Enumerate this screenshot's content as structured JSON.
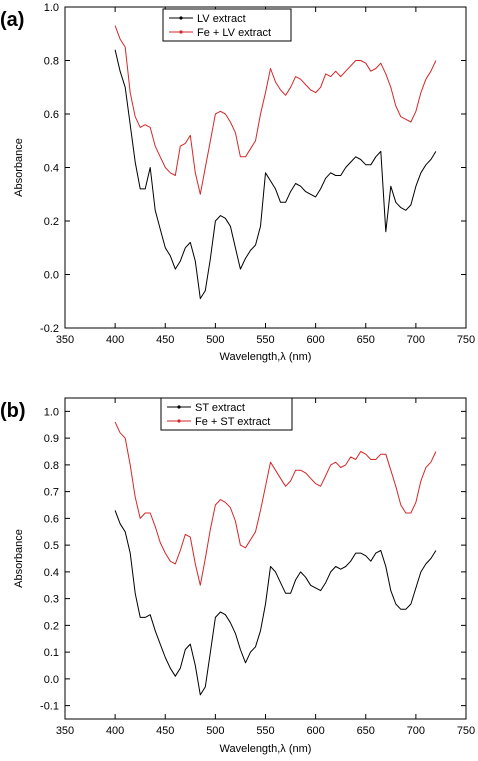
{
  "chart_data": [
    {
      "type": "line",
      "panel_label": "(a)",
      "xlabel": "Wavelength,λ (nm)",
      "ylabel": "Absorbance",
      "xlim": [
        350,
        750
      ],
      "ylim": [
        -0.2,
        1.0
      ],
      "xticks": [
        350,
        400,
        450,
        500,
        550,
        600,
        650,
        700,
        750
      ],
      "yticks": [
        -0.2,
        0.0,
        0.2,
        0.4,
        0.6,
        0.8,
        1.0
      ],
      "ytick_decimals": 1,
      "legend": "top-center",
      "series": [
        {
          "name": "LV extract",
          "color": "#000000",
          "x": [
            400,
            405,
            410,
            415,
            420,
            425,
            430,
            435,
            440,
            445,
            450,
            455,
            460,
            465,
            470,
            475,
            480,
            485,
            490,
            495,
            500,
            505,
            510,
            515,
            520,
            525,
            530,
            535,
            540,
            545,
            550,
            555,
            560,
            565,
            570,
            575,
            580,
            585,
            590,
            595,
            600,
            605,
            610,
            615,
            620,
            625,
            630,
            635,
            640,
            645,
            650,
            655,
            660,
            665,
            670,
            675,
            680,
            685,
            690,
            695,
            700,
            705,
            710,
            715,
            720
          ],
          "y": [
            0.84,
            0.76,
            0.7,
            0.56,
            0.42,
            0.32,
            0.32,
            0.4,
            0.24,
            0.17,
            0.1,
            0.07,
            0.02,
            0.05,
            0.1,
            0.12,
            0.05,
            -0.09,
            -0.06,
            0.06,
            0.2,
            0.22,
            0.21,
            0.18,
            0.1,
            0.02,
            0.06,
            0.09,
            0.11,
            0.18,
            0.38,
            0.35,
            0.32,
            0.27,
            0.27,
            0.31,
            0.34,
            0.33,
            0.31,
            0.3,
            0.29,
            0.32,
            0.36,
            0.38,
            0.37,
            0.37,
            0.4,
            0.42,
            0.44,
            0.43,
            0.41,
            0.41,
            0.44,
            0.46,
            0.16,
            0.33,
            0.27,
            0.25,
            0.24,
            0.26,
            0.33,
            0.38,
            0.41,
            0.43,
            0.46
          ]
        },
        {
          "name": "Fe + LV extract",
          "color": "#d62728",
          "x": [
            400,
            405,
            410,
            415,
            420,
            425,
            430,
            435,
            440,
            445,
            450,
            455,
            460,
            465,
            470,
            475,
            480,
            485,
            490,
            495,
            500,
            505,
            510,
            515,
            520,
            525,
            530,
            535,
            540,
            545,
            550,
            555,
            560,
            565,
            570,
            575,
            580,
            585,
            590,
            595,
            600,
            605,
            610,
            615,
            620,
            625,
            630,
            635,
            640,
            645,
            650,
            655,
            660,
            665,
            670,
            675,
            680,
            685,
            690,
            695,
            700,
            705,
            710,
            715,
            720
          ],
          "y": [
            0.93,
            0.88,
            0.85,
            0.68,
            0.59,
            0.55,
            0.56,
            0.55,
            0.48,
            0.44,
            0.4,
            0.38,
            0.37,
            0.48,
            0.49,
            0.52,
            0.38,
            0.3,
            0.4,
            0.5,
            0.6,
            0.61,
            0.6,
            0.57,
            0.53,
            0.44,
            0.44,
            0.47,
            0.5,
            0.6,
            0.68,
            0.77,
            0.72,
            0.69,
            0.67,
            0.7,
            0.74,
            0.73,
            0.71,
            0.69,
            0.68,
            0.7,
            0.75,
            0.74,
            0.76,
            0.74,
            0.76,
            0.78,
            0.8,
            0.8,
            0.79,
            0.76,
            0.77,
            0.79,
            0.75,
            0.7,
            0.63,
            0.59,
            0.58,
            0.57,
            0.61,
            0.68,
            0.73,
            0.76,
            0.8
          ]
        }
      ]
    },
    {
      "type": "line",
      "panel_label": "(b)",
      "xlabel": "Wavelength,λ (nm)",
      "ylabel": "Absorbance",
      "xlim": [
        350,
        750
      ],
      "ylim": [
        -0.15,
        1.05
      ],
      "xticks": [
        350,
        400,
        450,
        500,
        550,
        600,
        650,
        700,
        750
      ],
      "yticks": [
        -0.1,
        0.0,
        0.1,
        0.2,
        0.3,
        0.4,
        0.5,
        0.6,
        0.7,
        0.8,
        0.9,
        1.0
      ],
      "ytick_decimals": 1,
      "legend": "top-center",
      "series": [
        {
          "name": "ST extract",
          "color": "#000000",
          "x": [
            400,
            405,
            410,
            415,
            420,
            425,
            430,
            435,
            440,
            445,
            450,
            455,
            460,
            465,
            470,
            475,
            480,
            485,
            490,
            495,
            500,
            505,
            510,
            515,
            520,
            525,
            530,
            535,
            540,
            545,
            550,
            555,
            560,
            565,
            570,
            575,
            580,
            585,
            590,
            595,
            600,
            605,
            610,
            615,
            620,
            625,
            630,
            635,
            640,
            645,
            650,
            655,
            660,
            665,
            670,
            675,
            680,
            685,
            690,
            695,
            700,
            705,
            710,
            715,
            720
          ],
          "y": [
            0.63,
            0.58,
            0.55,
            0.47,
            0.32,
            0.23,
            0.23,
            0.24,
            0.18,
            0.13,
            0.08,
            0.04,
            0.01,
            0.04,
            0.11,
            0.13,
            0.05,
            -0.06,
            -0.03,
            0.1,
            0.23,
            0.25,
            0.24,
            0.21,
            0.17,
            0.11,
            0.06,
            0.1,
            0.12,
            0.18,
            0.28,
            0.42,
            0.4,
            0.36,
            0.32,
            0.32,
            0.37,
            0.4,
            0.38,
            0.35,
            0.34,
            0.33,
            0.36,
            0.4,
            0.42,
            0.41,
            0.42,
            0.44,
            0.47,
            0.47,
            0.46,
            0.44,
            0.47,
            0.48,
            0.42,
            0.33,
            0.28,
            0.26,
            0.26,
            0.28,
            0.34,
            0.4,
            0.43,
            0.45,
            0.48
          ]
        },
        {
          "name": "Fe + ST extract",
          "color": "#d62728",
          "x": [
            400,
            405,
            410,
            415,
            420,
            425,
            430,
            435,
            440,
            445,
            450,
            455,
            460,
            465,
            470,
            475,
            480,
            485,
            490,
            495,
            500,
            505,
            510,
            515,
            520,
            525,
            530,
            535,
            540,
            545,
            550,
            555,
            560,
            565,
            570,
            575,
            580,
            585,
            590,
            595,
            600,
            605,
            610,
            615,
            620,
            625,
            630,
            635,
            640,
            645,
            650,
            655,
            660,
            665,
            670,
            675,
            680,
            685,
            690,
            695,
            700,
            705,
            710,
            715,
            720
          ],
          "y": [
            0.96,
            0.92,
            0.9,
            0.8,
            0.68,
            0.6,
            0.62,
            0.62,
            0.57,
            0.51,
            0.47,
            0.44,
            0.43,
            0.48,
            0.54,
            0.53,
            0.43,
            0.35,
            0.45,
            0.56,
            0.65,
            0.67,
            0.66,
            0.64,
            0.59,
            0.5,
            0.49,
            0.52,
            0.55,
            0.63,
            0.72,
            0.81,
            0.78,
            0.75,
            0.72,
            0.74,
            0.78,
            0.78,
            0.77,
            0.75,
            0.73,
            0.72,
            0.76,
            0.8,
            0.81,
            0.79,
            0.8,
            0.83,
            0.82,
            0.85,
            0.84,
            0.82,
            0.82,
            0.84,
            0.84,
            0.78,
            0.72,
            0.65,
            0.62,
            0.62,
            0.66,
            0.74,
            0.79,
            0.81,
            0.85
          ]
        }
      ]
    }
  ]
}
